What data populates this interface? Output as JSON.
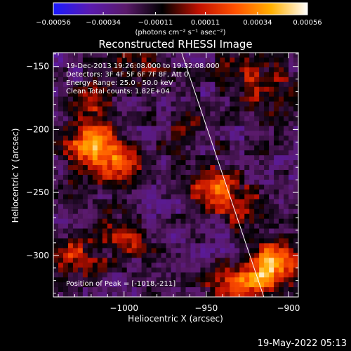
{
  "chart_data": {
    "type": "heatmap",
    "title": "Reconstructed RHESSI Image",
    "xlabel": "Heliocentric X (arcsec)",
    "ylabel": "Heliocentric Y (arcsec)",
    "xlim": [
      -1043,
      -894
    ],
    "ylim": [
      -333,
      -139
    ],
    "xticks": [
      -1000,
      -950,
      -900
    ],
    "yticks": [
      -150,
      -200,
      -250,
      -300
    ],
    "colorbar": {
      "ticks": [
        -0.00056,
        -0.00034,
        -0.00011,
        0.00011,
        0.00034,
        0.00056
      ],
      "tick_labels": [
        "-0.00056",
        "-0.00034",
        "-0.00011",
        "0.00011",
        "0.00034",
        "0.00056"
      ],
      "label": "(photons cm⁻² s⁻¹ asec⁻²)",
      "colors": [
        "#1a1aff",
        "#5a1ab0",
        "#5a1a6a",
        "#000000",
        "#c01000",
        "#ff5000",
        "#ffb000",
        "#ffffff"
      ]
    },
    "info": [
      "19-Dec-2013 19:26:08.000 to 19:32:08.000",
      "Detectors: 3F 4F 5F 6F 7F 8F, Att 0",
      "Energy Range: 25.0 - 50.0 keV",
      "Clean    Total counts: 1.82E+04"
    ],
    "peak_label": "Position of Peak = [-1018,-211]",
    "peak": [
      -1018,
      -211
    ],
    "limb_line": [
      [
        -965,
        -139
      ],
      [
        -915,
        -333
      ]
    ],
    "sources": [
      {
        "x": -1018,
        "y": -211,
        "amp": 0.00056
      },
      {
        "x": -1005,
        "y": -230,
        "amp": 0.0003
      },
      {
        "x": -1020,
        "y": -180,
        "amp": 0.00025
      },
      {
        "x": -945,
        "y": -247,
        "amp": 0.00045
      },
      {
        "x": -925,
        "y": -265,
        "amp": 0.00022
      },
      {
        "x": -908,
        "y": -305,
        "amp": 0.0005
      },
      {
        "x": -920,
        "y": -320,
        "amp": 0.00035
      },
      {
        "x": -1030,
        "y": -300,
        "amp": 0.0003
      },
      {
        "x": -1000,
        "y": -285,
        "amp": 0.00025
      },
      {
        "x": -940,
        "y": -325,
        "amp": 0.0002
      },
      {
        "x": -910,
        "y": -170,
        "amp": 0.00025
      },
      {
        "x": -930,
        "y": -150,
        "amp": 0.00022
      },
      {
        "x": -990,
        "y": -145,
        "amp": 0.00018
      },
      {
        "x": -960,
        "y": -200,
        "amp": 0.00012
      },
      {
        "x": -1040,
        "y": -250,
        "amp": 0.00015
      }
    ],
    "colorbar_line": "",
    "_ignore": ""
  },
  "timestamp": "19-May-2022 05:13"
}
